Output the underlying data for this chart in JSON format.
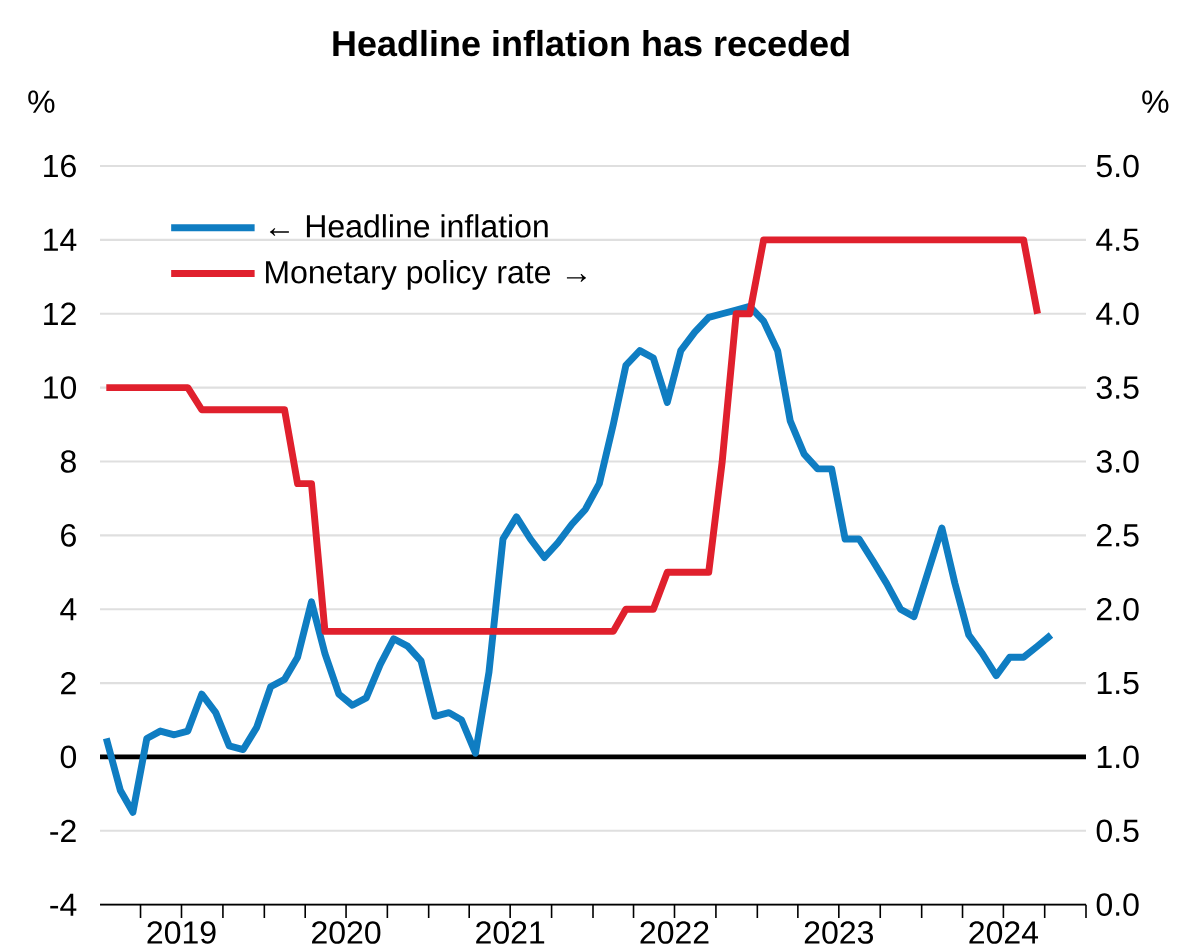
{
  "chart_data": {
    "type": "line",
    "title": "Headline inflation has receded",
    "ylabel": "%",
    "y2label": "%",
    "x": [
      "2019-01-15",
      "2019-02-15",
      "2019-03-15",
      "2019-04-15",
      "2019-05-15",
      "2019-06-15",
      "2019-07-15",
      "2019-08-15",
      "2019-09-15",
      "2019-10-15",
      "2019-11-15",
      "2019-12-15",
      "2020-01-15",
      "2020-02-15",
      "2020-03-15",
      "2020-04-15",
      "2020-05-15",
      "2020-06-15",
      "2020-07-15",
      "2020-08-15",
      "2020-09-15",
      "2020-10-15",
      "2020-11-15",
      "2020-12-15",
      "2021-01-15",
      "2021-02-15",
      "2021-03-15",
      "2021-04-15",
      "2021-05-15",
      "2021-06-15",
      "2021-07-15",
      "2021-08-15",
      "2021-09-15",
      "2021-10-15",
      "2021-11-15",
      "2021-12-15",
      "2022-01-15",
      "2022-02-15",
      "2022-03-15",
      "2022-04-15",
      "2022-05-15",
      "2022-06-15",
      "2022-07-15",
      "2022-08-15",
      "2022-09-15",
      "2022-10-15",
      "2022-11-15",
      "2022-12-15",
      "2023-01-15",
      "2023-02-15",
      "2023-03-15",
      "2023-04-15",
      "2023-05-15",
      "2023-06-15",
      "2023-07-15",
      "2023-08-15",
      "2023-09-15",
      "2023-10-15",
      "2023-11-15",
      "2023-12-15",
      "2024-01-15",
      "2024-02-15",
      "2024-03-15",
      "2024-04-15",
      "2024-05-15",
      "2024-06-15",
      "2024-07-15",
      "2024-08-15",
      "2024-09-15",
      "2024-10-15"
    ],
    "series": [
      {
        "name": "← Headline inflation",
        "color": "#0f7dc2",
        "values": [
          0.5,
          -0.9,
          -1.5,
          0.5,
          0.7,
          0.6,
          0.7,
          1.7,
          1.2,
          0.3,
          0.2,
          0.8,
          1.9,
          2.1,
          2.7,
          4.2,
          2.8,
          1.7,
          1.4,
          1.6,
          2.5,
          3.2,
          3.0,
          2.6,
          1.1,
          1.2,
          1.0,
          0.1,
          2.3,
          5.9,
          6.5,
          5.9,
          5.4,
          5.8,
          6.3,
          6.7,
          7.4,
          9.0,
          10.6,
          11.0,
          10.8,
          9.6,
          11.0,
          11.5,
          11.9,
          12.0,
          12.1,
          12.2,
          11.8,
          11.0,
          9.1,
          8.2,
          7.8,
          7.8,
          5.9,
          5.9,
          5.3,
          4.7,
          4.0,
          3.8,
          5.0,
          6.2,
          4.7,
          3.3,
          2.8,
          2.2,
          2.7,
          2.7,
          3.0,
          3.3
        ]
      },
      {
        "name": "Monetary policy rate →",
        "color": "#e0202d",
        "axis": "y2",
        "values": [
          3.5,
          3.5,
          3.5,
          3.5,
          3.5,
          3.5,
          3.5,
          3.35,
          3.35,
          3.35,
          3.35,
          3.35,
          3.35,
          3.35,
          2.85,
          2.85,
          1.85,
          1.85,
          1.85,
          1.85,
          1.85,
          1.85,
          1.85,
          1.85,
          1.85,
          1.85,
          1.85,
          1.85,
          1.85,
          1.85,
          1.85,
          1.85,
          1.85,
          1.85,
          1.85,
          1.85,
          1.85,
          1.85,
          2.0,
          2.0,
          2.0,
          2.25,
          2.25,
          2.25,
          2.25,
          3.0,
          4.0,
          4.0,
          4.5,
          4.5,
          4.5,
          4.5,
          4.5,
          4.5,
          4.5,
          4.5,
          4.5,
          4.5,
          4.5,
          4.5,
          4.5,
          4.5,
          4.5,
          4.5,
          4.5,
          4.5,
          4.5,
          4.5,
          4.0,
          null
        ]
      }
    ],
    "xlim": [
      "2019-01-01",
      "2025-01-01"
    ],
    "xticks": [
      {
        "value": "2019-04-01",
        "label": null
      },
      {
        "value": "2019-07-01",
        "label": "2019"
      },
      {
        "value": "2019-10-01",
        "label": null
      },
      {
        "value": "2020-01-01",
        "label": null
      },
      {
        "value": "2020-04-01",
        "label": null
      },
      {
        "value": "2020-07-01",
        "label": "2020"
      },
      {
        "value": "2020-10-01",
        "label": null
      },
      {
        "value": "2021-01-01",
        "label": null
      },
      {
        "value": "2021-04-01",
        "label": null
      },
      {
        "value": "2021-07-01",
        "label": "2021"
      },
      {
        "value": "2021-10-01",
        "label": null
      },
      {
        "value": "2022-01-01",
        "label": null
      },
      {
        "value": "2022-04-01",
        "label": null
      },
      {
        "value": "2022-07-01",
        "label": "2022"
      },
      {
        "value": "2022-10-01",
        "label": null
      },
      {
        "value": "2023-01-01",
        "label": null
      },
      {
        "value": "2023-04-01",
        "label": null
      },
      {
        "value": "2023-07-01",
        "label": "2023"
      },
      {
        "value": "2023-10-01",
        "label": null
      },
      {
        "value": "2024-01-01",
        "label": null
      },
      {
        "value": "2024-04-01",
        "label": null
      },
      {
        "value": "2024-07-01",
        "label": "2024"
      },
      {
        "value": "2024-10-01",
        "label": null
      },
      {
        "value": "2025-01-01",
        "label": null
      }
    ],
    "ylim": [
      -4,
      16
    ],
    "yticks": [
      -4,
      -2,
      0,
      2,
      4,
      6,
      8,
      10,
      12,
      14,
      16
    ],
    "y2lim": [
      0,
      5
    ],
    "y2ticks": [
      {
        "value": 0,
        "label": "0.0"
      },
      {
        "value": 0.5,
        "label": "0.5"
      },
      {
        "value": 1,
        "label": "1.0"
      },
      {
        "value": 1.5,
        "label": "1.5"
      },
      {
        "value": 2,
        "label": "2.0"
      },
      {
        "value": 2.5,
        "label": "2.5"
      },
      {
        "value": 3,
        "label": "3.0"
      },
      {
        "value": 3.5,
        "label": "3.5"
      },
      {
        "value": 4,
        "label": "4.0"
      },
      {
        "value": 4.5,
        "label": "4.5"
      },
      {
        "value": 5,
        "label": "5.0"
      }
    ],
    "ref_lines": [
      {
        "axis": "y",
        "value": 0,
        "color": "#000000"
      }
    ],
    "grid": "y",
    "legend": "top left"
  }
}
